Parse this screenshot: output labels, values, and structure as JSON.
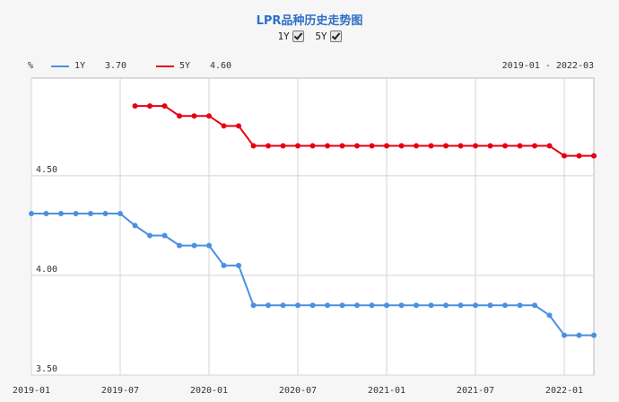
{
  "header": {
    "title": "LPR品种历史走势图",
    "toggles": [
      {
        "label": "1Y",
        "checked": true
      },
      {
        "label": "5Y",
        "checked": true
      }
    ]
  },
  "legend": {
    "unit": "%",
    "range": "2019-01 - 2022-03"
  },
  "colors": {
    "series_1y": "#4a90e2",
    "series_5y": "#e60012",
    "grid": "#d4d4d4",
    "axis": "#bbbbbb"
  },
  "chart_data": {
    "type": "line",
    "x_ticks": [
      "2019-01",
      "2019-07",
      "2020-01",
      "2020-07",
      "2021-01",
      "2021-07",
      "2022-01"
    ],
    "y_ticks": [
      "3.50",
      "4.00",
      "4.50"
    ],
    "ylim": [
      3.5,
      4.99
    ],
    "xlim": [
      "2019-01",
      "2022-03"
    ],
    "grid": true,
    "legend_position": "top-left",
    "series": [
      {
        "name": "1Y",
        "latest": "3.70",
        "x": [
          "2019-01",
          "2019-02",
          "2019-03",
          "2019-04",
          "2019-05",
          "2019-06",
          "2019-07",
          "2019-08",
          "2019-09",
          "2019-10",
          "2019-11",
          "2019-12",
          "2020-01",
          "2020-02",
          "2020-03",
          "2020-04",
          "2020-05",
          "2020-06",
          "2020-07",
          "2020-08",
          "2020-09",
          "2020-10",
          "2020-11",
          "2020-12",
          "2021-01",
          "2021-02",
          "2021-03",
          "2021-04",
          "2021-05",
          "2021-06",
          "2021-07",
          "2021-08",
          "2021-09",
          "2021-10",
          "2021-11",
          "2021-12",
          "2022-01",
          "2022-02",
          "2022-03"
        ],
        "values": [
          4.31,
          4.31,
          4.31,
          4.31,
          4.31,
          4.31,
          4.31,
          4.25,
          4.2,
          4.2,
          4.15,
          4.15,
          4.15,
          4.05,
          4.05,
          3.85,
          3.85,
          3.85,
          3.85,
          3.85,
          3.85,
          3.85,
          3.85,
          3.85,
          3.85,
          3.85,
          3.85,
          3.85,
          3.85,
          3.85,
          3.85,
          3.85,
          3.85,
          3.85,
          3.85,
          3.8,
          3.7,
          3.7,
          3.7
        ]
      },
      {
        "name": "5Y",
        "latest": "4.60",
        "x": [
          "2019-08",
          "2019-09",
          "2019-10",
          "2019-11",
          "2019-12",
          "2020-01",
          "2020-02",
          "2020-03",
          "2020-04",
          "2020-05",
          "2020-06",
          "2020-07",
          "2020-08",
          "2020-09",
          "2020-10",
          "2020-11",
          "2020-12",
          "2021-01",
          "2021-02",
          "2021-03",
          "2021-04",
          "2021-05",
          "2021-06",
          "2021-07",
          "2021-08",
          "2021-09",
          "2021-10",
          "2021-11",
          "2021-12",
          "2022-01",
          "2022-02",
          "2022-03"
        ],
        "values": [
          4.85,
          4.85,
          4.85,
          4.8,
          4.8,
          4.8,
          4.75,
          4.75,
          4.65,
          4.65,
          4.65,
          4.65,
          4.65,
          4.65,
          4.65,
          4.65,
          4.65,
          4.65,
          4.65,
          4.65,
          4.65,
          4.65,
          4.65,
          4.65,
          4.65,
          4.65,
          4.65,
          4.65,
          4.65,
          4.6,
          4.6,
          4.6
        ]
      }
    ]
  }
}
